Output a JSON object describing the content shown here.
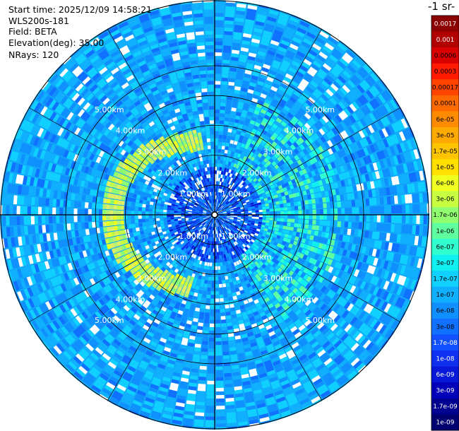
{
  "info": {
    "start_time": "Start time: 2025/12/09 14:58:21",
    "instrument": "WLS200s-181",
    "field": "Field: BETA",
    "elevation": "Elevation(deg): 35.00",
    "nrays": "NRays: 120"
  },
  "colorbar": {
    "title": "-1 sr-",
    "labels": [
      "0.0017",
      "0.001",
      "0.0006",
      "0.0003",
      "0.00017",
      "0.0001",
      "6e-05",
      "3e-05",
      "1.7e-05",
      "1e-05",
      "6e-06",
      "3e-06",
      "1.7e-06",
      "1e-06",
      "6e-07",
      "3e-07",
      "1.7e-07",
      "1e-07",
      "6e-08",
      "3e-08",
      "1.7e-08",
      "1e-08",
      "6e-09",
      "3e-09",
      "1.7e-09",
      "1e-09"
    ],
    "colors": [
      "#8b0000",
      "#b00000",
      "#d80000",
      "#ff1a00",
      "#ff4400",
      "#ff6a00",
      "#ff8c00",
      "#ffaa00",
      "#ffc400",
      "#ffe000",
      "#f0ff20",
      "#c8ff40",
      "#90ff70",
      "#60ffa0",
      "#30ffd0",
      "#10f0f0",
      "#10d0ff",
      "#10b0ff",
      "#1090ff",
      "#1070ff",
      "#1050ff",
      "#1030f0",
      "#0818d8",
      "#0000b8",
      "#000090",
      "#000070"
    ],
    "text_colors": [
      "#ffffff",
      "#ffffff",
      "#000000",
      "#000000",
      "#000000",
      "#000000",
      "#000000",
      "#000000",
      "#000000",
      "#000000",
      "#000000",
      "#000000",
      "#000000",
      "#000000",
      "#000000",
      "#000000",
      "#000000",
      "#000000",
      "#000000",
      "#000000",
      "#ffffff",
      "#ffffff",
      "#ffffff",
      "#ffffff",
      "#ffffff",
      "#ffffff"
    ]
  },
  "chart_data": {
    "type": "heatmap",
    "projection": "polar PPI",
    "nrays": 120,
    "range_rings_km": [
      1.0,
      2.0,
      3.0,
      4.0,
      5.0
    ],
    "range_ring_labels": [
      "1.00km",
      "2.00km",
      "3.00km",
      "4.00km",
      "5.00km"
    ],
    "max_range_km": 5.4,
    "features": [
      {
        "description_value": "background backscatter",
        "value_range": [
          "1e-08",
          "6e-08"
        ]
      },
      {
        "description_value": "inner region",
        "value_range": [
          "1e-09",
          "3e-08"
        ]
      },
      {
        "description_value": "west arc",
        "radius_km": [
          2.4,
          3.8
        ],
        "value_range": [
          "1e-06",
          "3e-06"
        ]
      }
    ]
  }
}
